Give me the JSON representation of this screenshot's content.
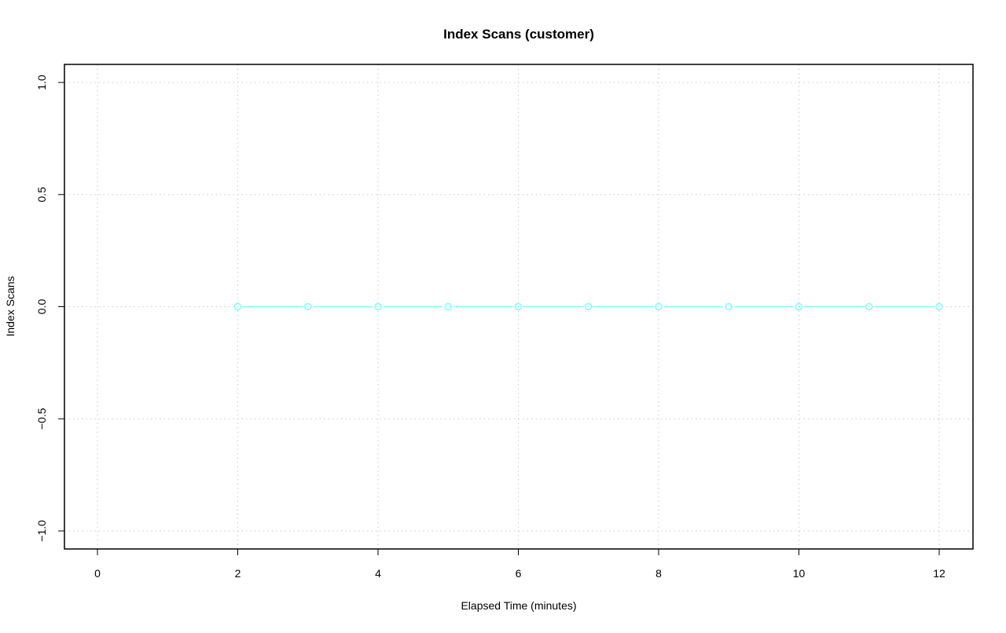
{
  "chart_data": {
    "type": "line",
    "title": "Index Scans (customer)",
    "xlabel": "Elapsed Time (minutes)",
    "ylabel": "Index Scans",
    "xlim": [
      -0.5,
      12.5
    ],
    "ylim": [
      -1.08,
      1.08
    ],
    "x_ticks": [
      0,
      2,
      4,
      6,
      8,
      10,
      12
    ],
    "x_tick_labels": [
      "0",
      "2",
      "4",
      "6",
      "8",
      "10",
      "12"
    ],
    "y_ticks": [
      -1.0,
      -0.5,
      0.0,
      0.5,
      1.0
    ],
    "y_tick_labels": [
      "−1.0",
      "−0.5",
      "0.0",
      "0.5",
      "1.0"
    ],
    "grid": true,
    "series": [
      {
        "color": "#7fffff",
        "marker": "open-circle",
        "x": [
          2,
          3,
          4,
          5,
          6,
          7,
          8,
          9,
          10,
          11,
          12
        ],
        "y": [
          0,
          0,
          0,
          0,
          0,
          0,
          0,
          0,
          0,
          0,
          0
        ]
      }
    ]
  }
}
